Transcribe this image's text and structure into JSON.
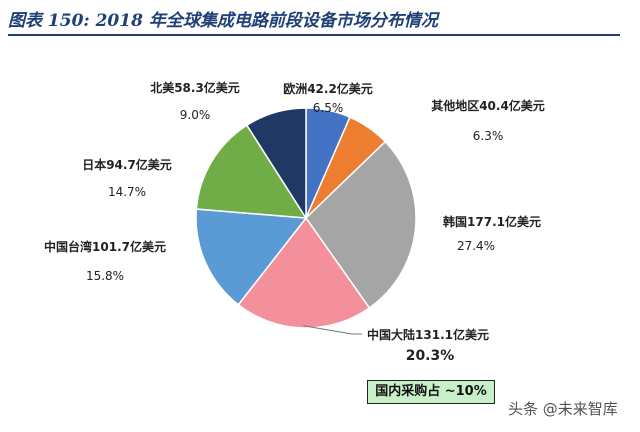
{
  "figure_title": "图表 150:  2018 年全球集成电路前段设备市场分布情况",
  "note": "国内采购占 ~10%",
  "watermark": "头条 @未来智库",
  "colors": {
    "title": "#1f3f77",
    "note_bg": "#c8f0c8"
  },
  "chart_data": {
    "type": "pie",
    "title": "",
    "slices": [
      {
        "name": "欧洲42.2亿美元",
        "value": 42.2,
        "percent": "6.5%",
        "color": "#4472c4"
      },
      {
        "name": "其他地区40.4亿美元",
        "value": 40.4,
        "percent": "6.3%",
        "color": "#ed7d31"
      },
      {
        "name": "韩国177.1亿美元",
        "value": 177.1,
        "percent": "27.4%",
        "color": "#a5a5a5"
      },
      {
        "name": "中国大陆131.1亿美元",
        "value": 131.1,
        "percent": "20.3%",
        "color": "#f4909c",
        "emphasis": true
      },
      {
        "name": "中国台湾101.7亿美元",
        "value": 101.7,
        "percent": "15.8%",
        "color": "#5b9bd5"
      },
      {
        "name": "日本94.7亿美元",
        "value": 94.7,
        "percent": "14.7%",
        "color": "#70ad47"
      },
      {
        "name": "北美58.3亿美元",
        "value": 58.3,
        "percent": "9.0%",
        "color": "#203864"
      }
    ],
    "start_angle_deg": 0,
    "direction": "clockwise",
    "legend": "none"
  }
}
